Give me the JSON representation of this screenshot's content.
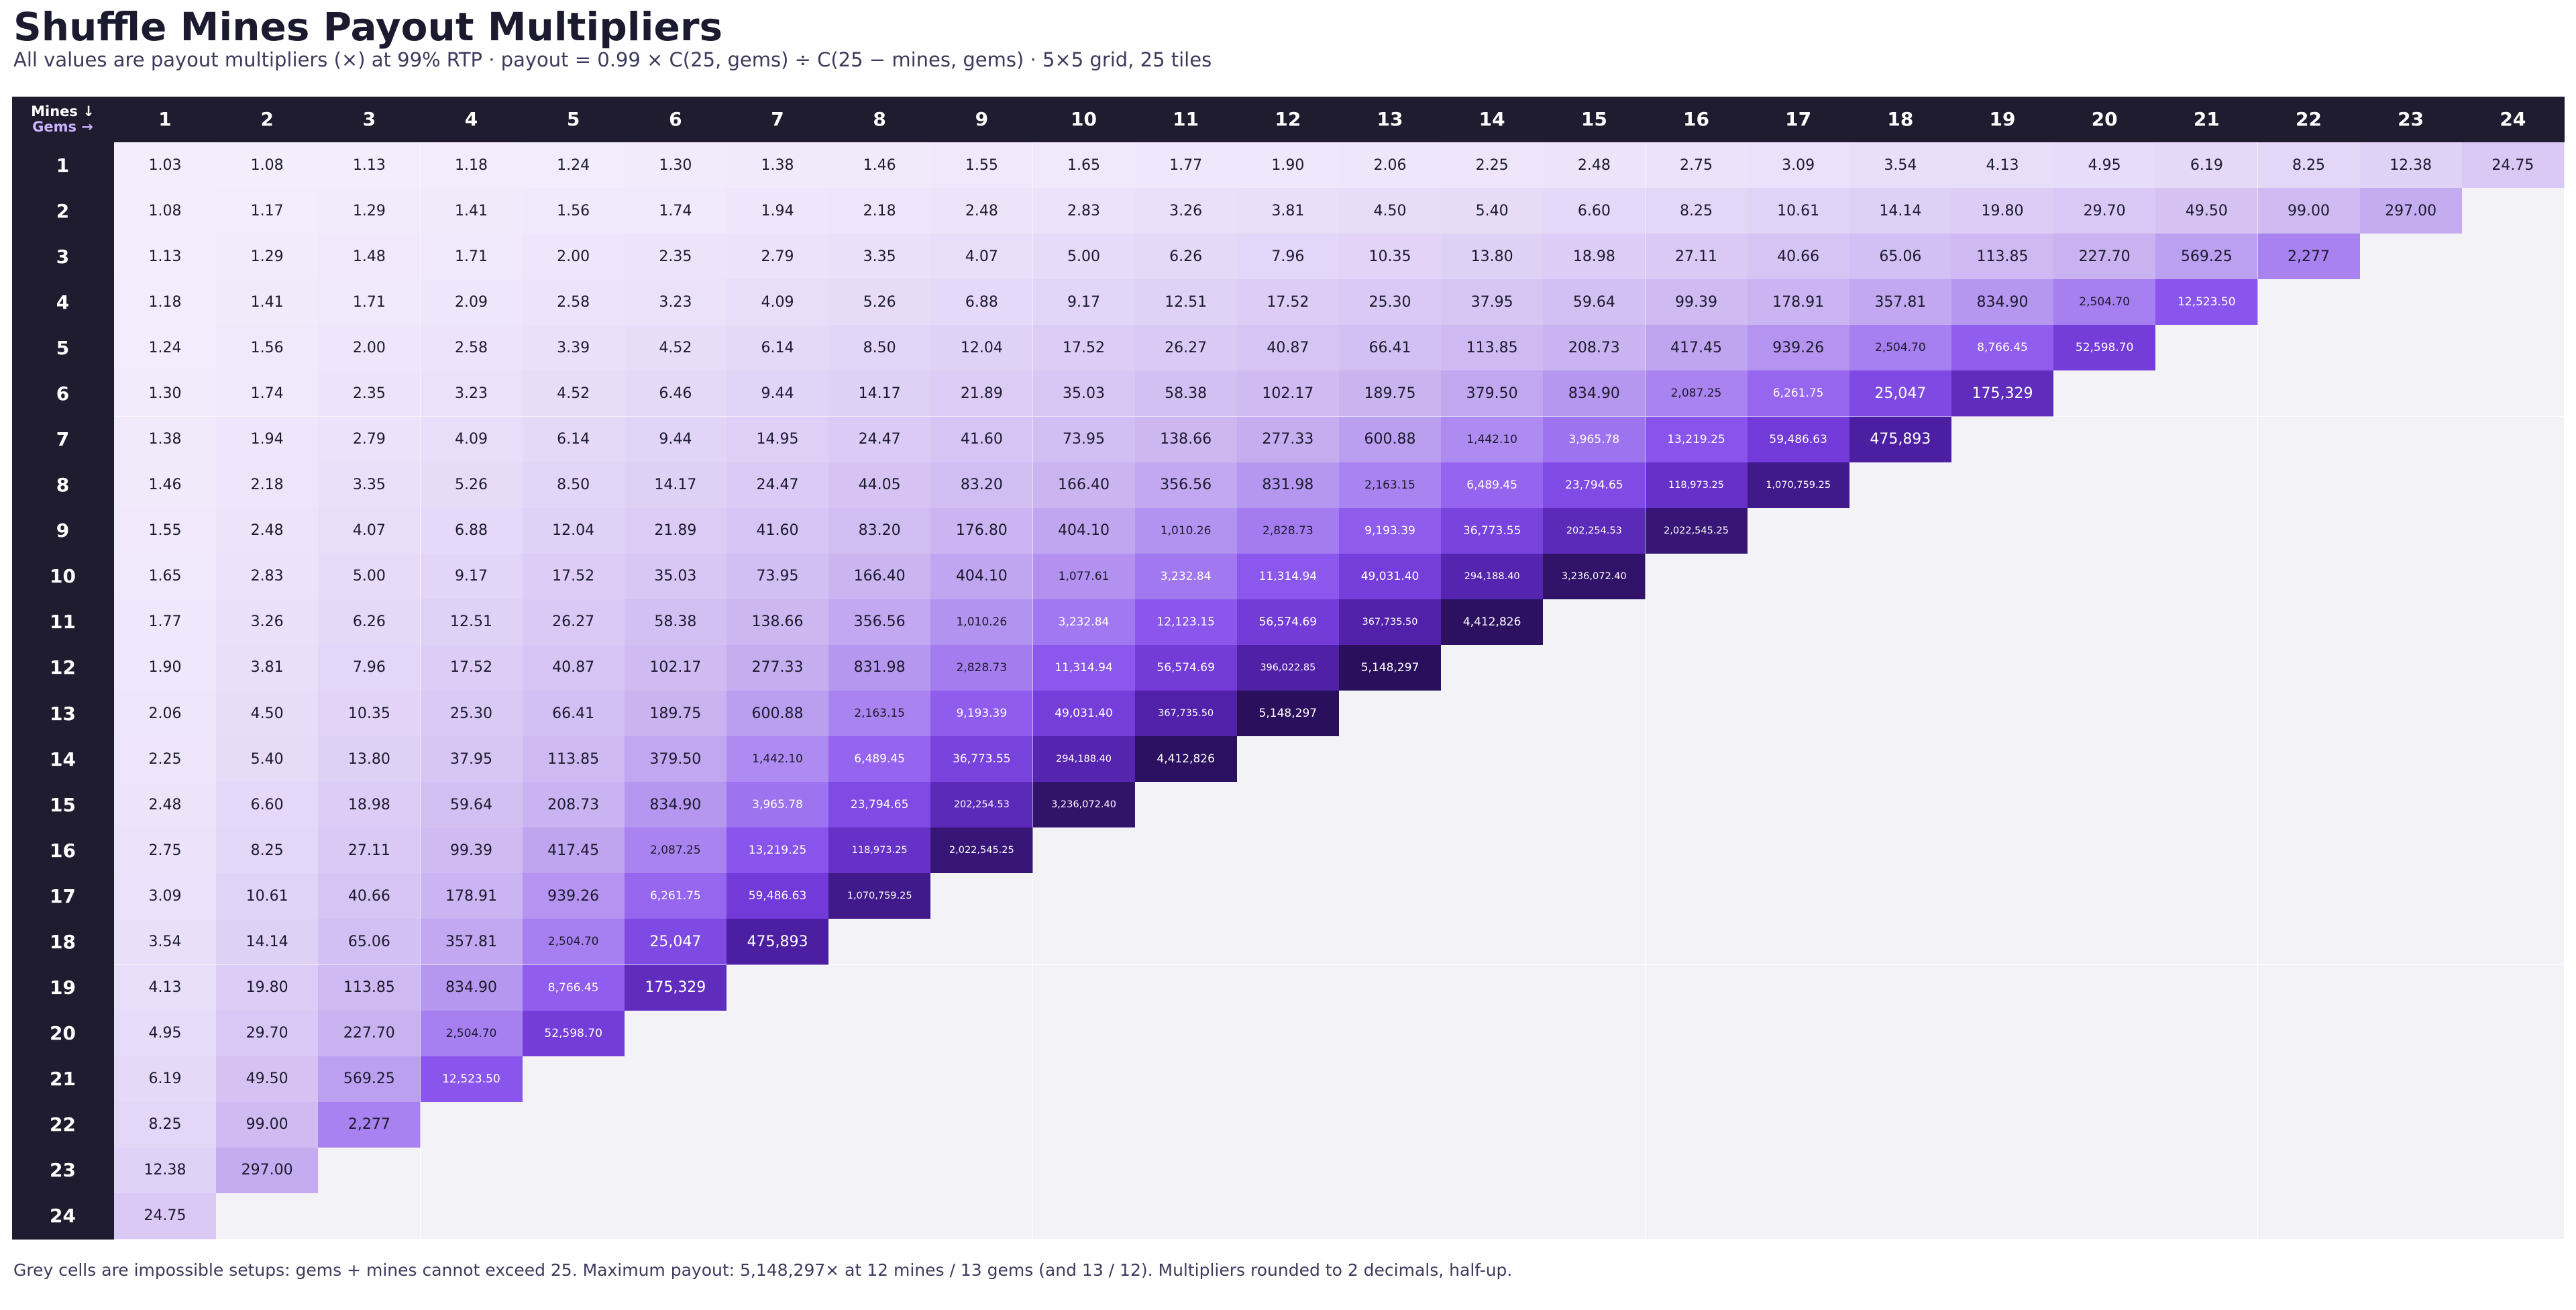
{
  "title": "Shuffle Mines Payout Multipliers",
  "subtitle": "All values are payout multipliers (×) at 99% RTP  ·  payout = 0.99 × C(25, gems) ÷ C(25 − mines, gems)  ·  5×5 grid, 25 tiles",
  "footnote": "Grey cells are impossible setups: gems + mines cannot exceed 25. Maximum payout: 5,148,297× at 12 mines / 13 gems (and 13 / 12). Multipliers rounded to 2 decimals, half-up.",
  "chart_data": {
    "type": "heatmap",
    "row_axis_label": "Mines ↓",
    "col_axis_label": "Gems →",
    "rows": [
      "1",
      "2",
      "3",
      "4",
      "5",
      "6",
      "7",
      "8",
      "9",
      "10",
      "11",
      "12",
      "13",
      "14",
      "15",
      "16",
      "17",
      "18",
      "19",
      "20",
      "21",
      "22",
      "23",
      "24"
    ],
    "cols": [
      "1",
      "2",
      "3",
      "4",
      "5",
      "6",
      "7",
      "8",
      "9",
      "10",
      "11",
      "12",
      "13",
      "14",
      "15",
      "16",
      "17",
      "18",
      "19",
      "20",
      "21",
      "22",
      "23",
      "24"
    ],
    "colors": {
      "header_bg": "#1e1c2e",
      "empty_cell": "#f3f2f6",
      "scale_low": "#f1eafc",
      "scale_high": "#2b1063"
    },
    "values": [
      [
        "1.03",
        "1.08",
        "1.13",
        "1.18",
        "1.24",
        "1.30",
        "1.38",
        "1.46",
        "1.55",
        "1.65",
        "1.77",
        "1.90",
        "2.06",
        "2.25",
        "2.48",
        "2.75",
        "3.09",
        "3.54",
        "4.13",
        "4.95",
        "6.19",
        "8.25",
        "12.38",
        "24.75"
      ],
      [
        "1.08",
        "1.17",
        "1.29",
        "1.41",
        "1.56",
        "1.74",
        "1.94",
        "2.18",
        "2.48",
        "2.83",
        "3.26",
        "3.81",
        "4.50",
        "5.40",
        "6.60",
        "8.25",
        "10.61",
        "14.14",
        "19.80",
        "29.70",
        "49.50",
        "99.00",
        "297.00",
        null
      ],
      [
        "1.13",
        "1.29",
        "1.48",
        "1.71",
        "2.00",
        "2.35",
        "2.79",
        "3.35",
        "4.07",
        "5.00",
        "6.26",
        "7.96",
        "10.35",
        "13.80",
        "18.98",
        "27.11",
        "40.66",
        "65.06",
        "113.85",
        "227.70",
        "569.25",
        "2,277",
        null,
        null
      ],
      [
        "1.18",
        "1.41",
        "1.71",
        "2.09",
        "2.58",
        "3.23",
        "4.09",
        "5.26",
        "6.88",
        "9.17",
        "12.51",
        "17.52",
        "25.30",
        "37.95",
        "59.64",
        "99.39",
        "178.91",
        "357.81",
        "834.90",
        "2,504.70",
        "12,523.50",
        null,
        null,
        null
      ],
      [
        "1.24",
        "1.56",
        "2.00",
        "2.58",
        "3.39",
        "4.52",
        "6.14",
        "8.50",
        "12.04",
        "17.52",
        "26.27",
        "40.87",
        "66.41",
        "113.85",
        "208.73",
        "417.45",
        "939.26",
        "2,504.70",
        "8,766.45",
        "52,598.70",
        null,
        null,
        null,
        null
      ],
      [
        "1.30",
        "1.74",
        "2.35",
        "3.23",
        "4.52",
        "6.46",
        "9.44",
        "14.17",
        "21.89",
        "35.03",
        "58.38",
        "102.17",
        "189.75",
        "379.50",
        "834.90",
        "2,087.25",
        "6,261.75",
        "25,047",
        "175,329",
        null,
        null,
        null,
        null,
        null
      ],
      [
        "1.38",
        "1.94",
        "2.79",
        "4.09",
        "6.14",
        "9.44",
        "14.95",
        "24.47",
        "41.60",
        "73.95",
        "138.66",
        "277.33",
        "600.88",
        "1,442.10",
        "3,965.78",
        "13,219.25",
        "59,486.63",
        "475,893",
        null,
        null,
        null,
        null,
        null,
        null
      ],
      [
        "1.46",
        "2.18",
        "3.35",
        "5.26",
        "8.50",
        "14.17",
        "24.47",
        "44.05",
        "83.20",
        "166.40",
        "356.56",
        "831.98",
        "2,163.15",
        "6,489.45",
        "23,794.65",
        "118,973.25",
        "1,070,759.25",
        null,
        null,
        null,
        null,
        null,
        null,
        null
      ],
      [
        "1.55",
        "2.48",
        "4.07",
        "6.88",
        "12.04",
        "21.89",
        "41.60",
        "83.20",
        "176.80",
        "404.10",
        "1,010.26",
        "2,828.73",
        "9,193.39",
        "36,773.55",
        "202,254.53",
        "2,022,545.25",
        null,
        null,
        null,
        null,
        null,
        null,
        null,
        null
      ],
      [
        "1.65",
        "2.83",
        "5.00",
        "9.17",
        "17.52",
        "35.03",
        "73.95",
        "166.40",
        "404.10",
        "1,077.61",
        "3,232.84",
        "11,314.94",
        "49,031.40",
        "294,188.40",
        "3,236,072.40",
        null,
        null,
        null,
        null,
        null,
        null,
        null,
        null,
        null
      ],
      [
        "1.77",
        "3.26",
        "6.26",
        "12.51",
        "26.27",
        "58.38",
        "138.66",
        "356.56",
        "1,010.26",
        "3,232.84",
        "12,123.15",
        "56,574.69",
        "367,735.50",
        "4,412,826",
        null,
        null,
        null,
        null,
        null,
        null,
        null,
        null,
        null,
        null
      ],
      [
        "1.90",
        "3.81",
        "7.96",
        "17.52",
        "40.87",
        "102.17",
        "277.33",
        "831.98",
        "2,828.73",
        "11,314.94",
        "56,574.69",
        "396,022.85",
        "5,148,297",
        null,
        null,
        null,
        null,
        null,
        null,
        null,
        null,
        null,
        null,
        null
      ],
      [
        "2.06",
        "4.50",
        "10.35",
        "25.30",
        "66.41",
        "189.75",
        "600.88",
        "2,163.15",
        "9,193.39",
        "49,031.40",
        "367,735.50",
        "5,148,297",
        null,
        null,
        null,
        null,
        null,
        null,
        null,
        null,
        null,
        null,
        null,
        null
      ],
      [
        "2.25",
        "5.40",
        "13.80",
        "37.95",
        "113.85",
        "379.50",
        "1,442.10",
        "6,489.45",
        "36,773.55",
        "294,188.40",
        "4,412,826",
        null,
        null,
        null,
        null,
        null,
        null,
        null,
        null,
        null,
        null,
        null,
        null,
        null
      ],
      [
        "2.48",
        "6.60",
        "18.98",
        "59.64",
        "208.73",
        "834.90",
        "3,965.78",
        "23,794.65",
        "202,254.53",
        "3,236,072.40",
        null,
        null,
        null,
        null,
        null,
        null,
        null,
        null,
        null,
        null,
        null,
        null,
        null,
        null
      ],
      [
        "2.75",
        "8.25",
        "27.11",
        "99.39",
        "417.45",
        "2,087.25",
        "13,219.25",
        "118,973.25",
        "2,022,545.25",
        null,
        null,
        null,
        null,
        null,
        null,
        null,
        null,
        null,
        null,
        null,
        null,
        null,
        null,
        null
      ],
      [
        "3.09",
        "10.61",
        "40.66",
        "178.91",
        "939.26",
        "6,261.75",
        "59,486.63",
        "1,070,759.25",
        null,
        null,
        null,
        null,
        null,
        null,
        null,
        null,
        null,
        null,
        null,
        null,
        null,
        null,
        null,
        null
      ],
      [
        "3.54",
        "14.14",
        "65.06",
        "357.81",
        "2,504.70",
        "25,047",
        "475,893",
        null,
        null,
        null,
        null,
        null,
        null,
        null,
        null,
        null,
        null,
        null,
        null,
        null,
        null,
        null,
        null,
        null
      ],
      [
        "4.13",
        "19.80",
        "113.85",
        "834.90",
        "8,766.45",
        "175,329",
        null,
        null,
        null,
        null,
        null,
        null,
        null,
        null,
        null,
        null,
        null,
        null,
        null,
        null,
        null,
        null,
        null,
        null
      ],
      [
        "4.95",
        "29.70",
        "227.70",
        "2,504.70",
        "52,598.70",
        null,
        null,
        null,
        null,
        null,
        null,
        null,
        null,
        null,
        null,
        null,
        null,
        null,
        null,
        null,
        null,
        null,
        null,
        null
      ],
      [
        "6.19",
        "49.50",
        "569.25",
        "12,523.50",
        null,
        null,
        null,
        null,
        null,
        null,
        null,
        null,
        null,
        null,
        null,
        null,
        null,
        null,
        null,
        null,
        null,
        null,
        null,
        null
      ],
      [
        "8.25",
        "99.00",
        "2,277",
        null,
        null,
        null,
        null,
        null,
        null,
        null,
        null,
        null,
        null,
        null,
        null,
        null,
        null,
        null,
        null,
        null,
        null,
        null,
        null,
        null
      ],
      [
        "12.38",
        "297.00",
        null,
        null,
        null,
        null,
        null,
        null,
        null,
        null,
        null,
        null,
        null,
        null,
        null,
        null,
        null,
        null,
        null,
        null,
        null,
        null,
        null,
        null
      ],
      [
        "24.75",
        null,
        null,
        null,
        null,
        null,
        null,
        null,
        null,
        null,
        null,
        null,
        null,
        null,
        null,
        null,
        null,
        null,
        null,
        null,
        null,
        null,
        null,
        null
      ]
    ]
  }
}
